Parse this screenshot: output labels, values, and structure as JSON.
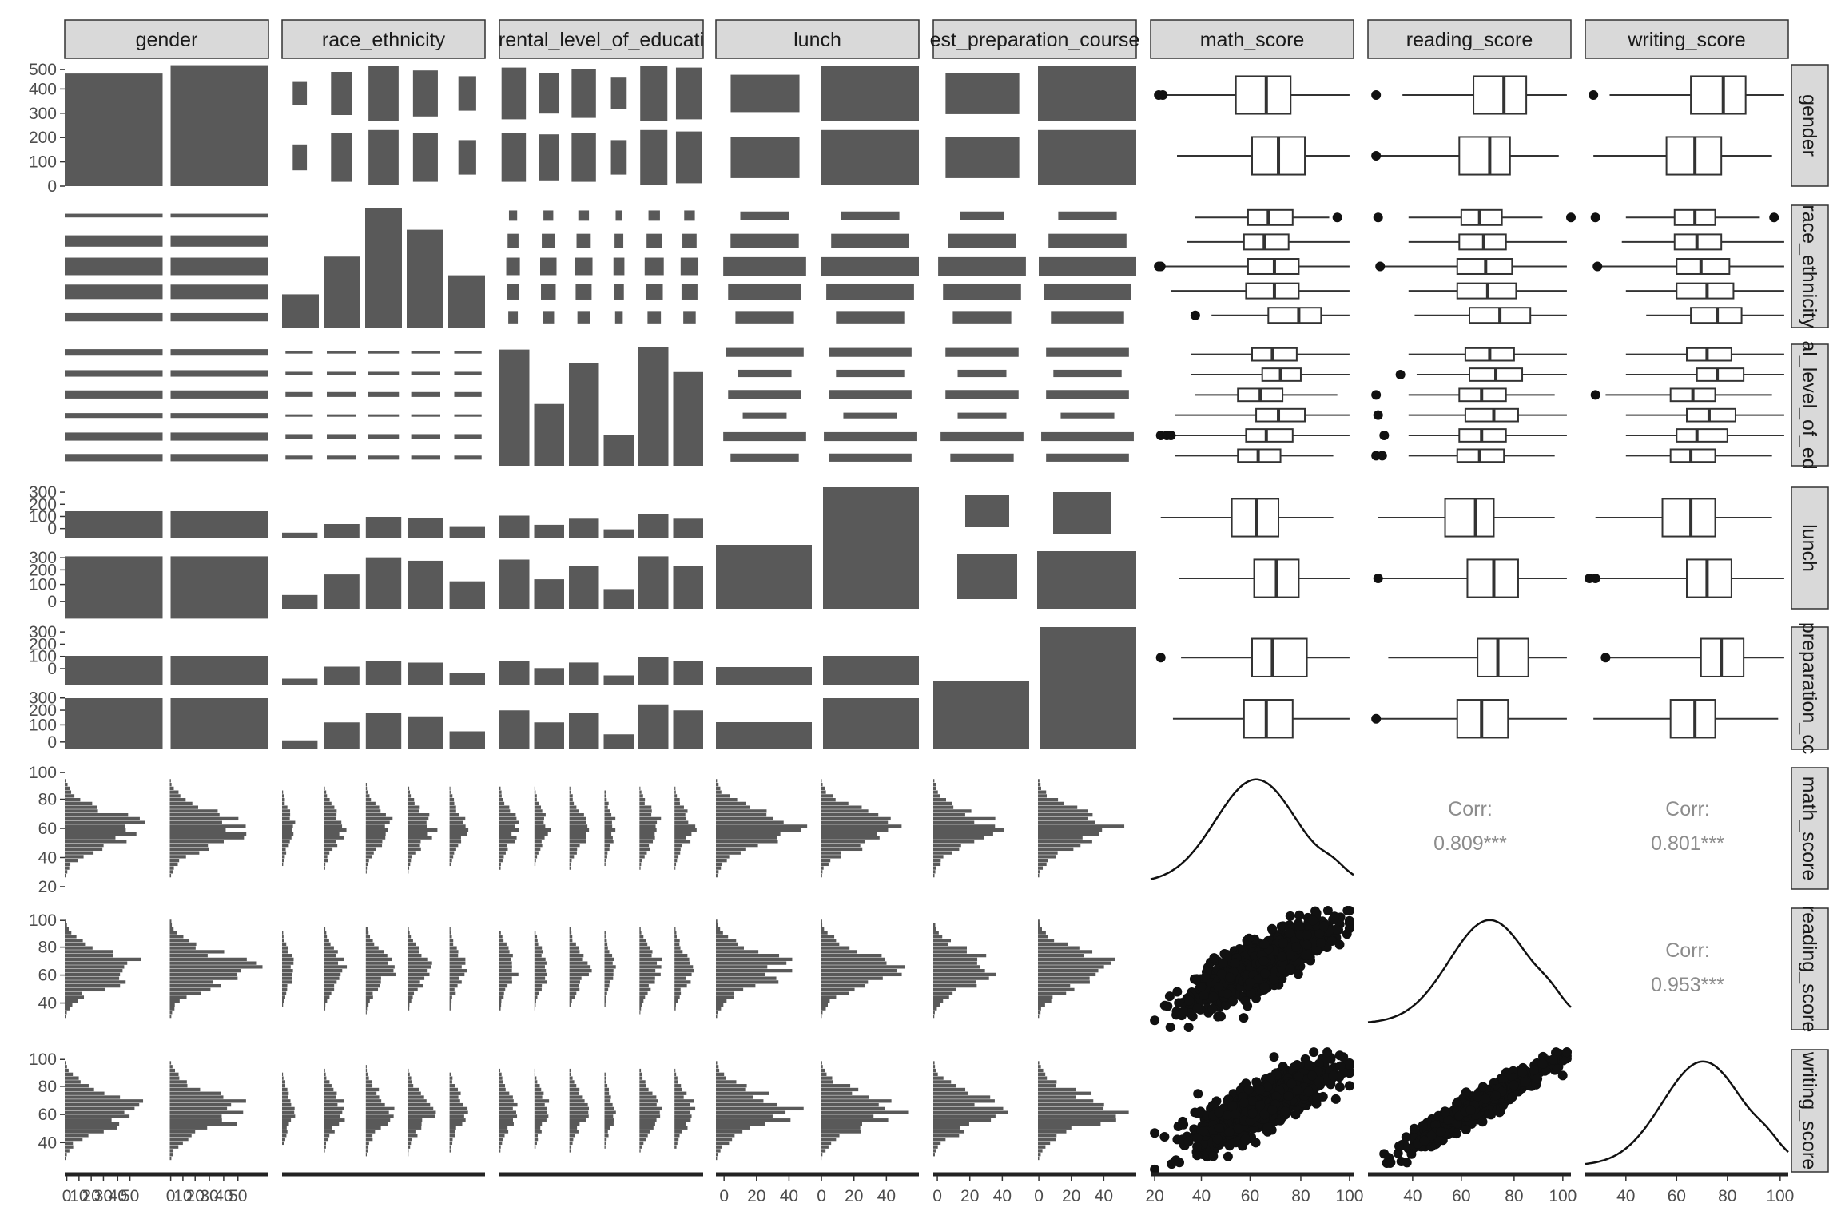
{
  "chart_data": {
    "type": "pairs-matrix",
    "variables": [
      "gender",
      "race_ethnicity",
      "parental_level_of_education",
      "lunch",
      "test_preparation_course",
      "math_score",
      "reading_score",
      "writing_score"
    ],
    "column_labels": [
      "gender",
      "race_ethnicity",
      "rental_level_of_educati",
      "lunch",
      "est_preparation_course",
      "math_score",
      "reading_score",
      "writing_score"
    ],
    "row_labels": [
      "gender",
      "race_ethnicity",
      "al_level_of_ed",
      "lunch",
      "preparation_cc",
      "math_score",
      "reading_score",
      "writing_score"
    ],
    "counts": {
      "gender": [
        482,
        518
      ],
      "race_ethnicity": [
        89,
        190,
        319,
        262,
        140
      ],
      "parental_level_of_education": [
        222,
        118,
        196,
        59,
        226,
        179
      ],
      "lunch": [
        355,
        645
      ],
      "test_preparation_course": [
        358,
        642
      ],
      "gender_x_lunch": [
        [
          165,
          317
        ],
        [
          190,
          328
        ]
      ],
      "gender_x_prep": [
        [
          184,
          298
        ],
        [
          174,
          344
        ]
      ],
      "lunch_x_prep": [
        [
          131,
          224
        ],
        [
          227,
          418
        ]
      ]
    },
    "score_summaries": {
      "math_score": {
        "median": 66,
        "q1": 57,
        "q3": 77,
        "min": 0,
        "max": 100
      },
      "reading_score": {
        "median": 70,
        "q1": 59,
        "q3": 79,
        "min": 17,
        "max": 100
      },
      "writing_score": {
        "median": 69,
        "q1": 58,
        "q3": 79,
        "min": 10,
        "max": 100
      }
    },
    "correlations": [
      {
        "pair": [
          "math_score",
          "reading_score"
        ],
        "label": "Corr:",
        "value": "0.809***"
      },
      {
        "pair": [
          "math_score",
          "writing_score"
        ],
        "label": "Corr:",
        "value": "0.801***"
      },
      {
        "pair": [
          "reading_score",
          "writing_score"
        ],
        "label": "Corr:",
        "value": "0.953***"
      }
    ],
    "y_ticks": {
      "gender": [
        "500",
        "400",
        "300",
        "200",
        "100",
        "0"
      ],
      "lunch": [
        "300",
        "200",
        "100",
        "0",
        "300",
        "200",
        "100",
        "0"
      ],
      "test_preparation_course": [
        "300",
        "200",
        "100",
        "0",
        "300",
        "200",
        "100",
        "0"
      ],
      "math_score": [
        "100",
        "80",
        "60",
        "40",
        "20"
      ],
      "reading_score": [
        "100",
        "80",
        "60",
        "40"
      ],
      "writing_score": [
        "100",
        "80",
        "60",
        "40"
      ]
    },
    "x_ticks": {
      "gender": [
        "0",
        "10",
        "20",
        "30",
        "40",
        "50",
        "0",
        "10",
        "20",
        "30",
        "40",
        "50"
      ],
      "lunch": [
        "0",
        "20",
        "40",
        "0",
        "20",
        "40"
      ],
      "test_preparation_course": [
        "0",
        "20",
        "40",
        "0",
        "20",
        "40"
      ],
      "math_score": [
        "20",
        "40",
        "60",
        "80",
        "100"
      ],
      "reading_score": [
        "40",
        "60",
        "80",
        "100"
      ],
      "writing_score": [
        "40",
        "60",
        "80",
        "100"
      ]
    },
    "grid": false,
    "theme": "classic"
  }
}
